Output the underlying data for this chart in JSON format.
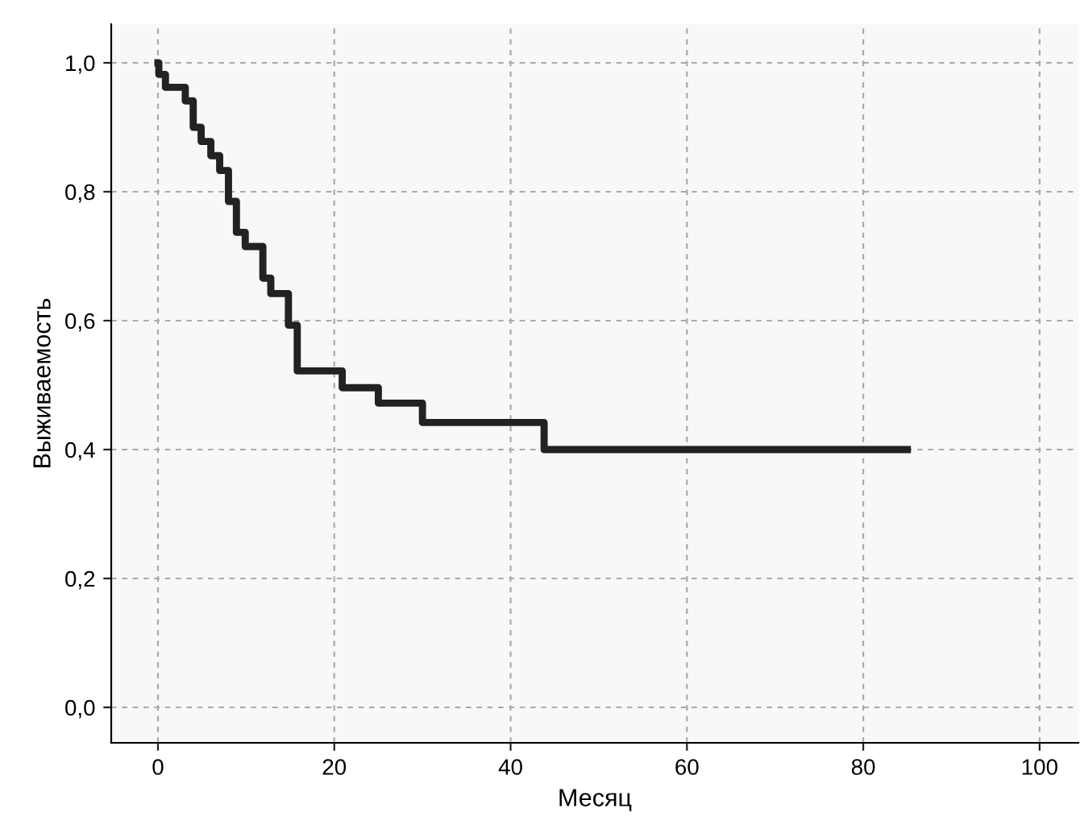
{
  "chart_data": {
    "type": "step",
    "xlabel": "Месяц",
    "ylabel": "Выживаемость",
    "x": [
      0,
      0.1,
      0.85,
      3.1,
      4,
      4.9,
      6,
      7,
      8,
      8.9,
      9.9,
      11.9,
      12.8,
      14.8,
      15.8,
      20.9,
      25,
      30,
      43.8,
      85
    ],
    "series": [
      {
        "color": "#222222",
        "values": [
          1.0,
          0.982,
          0.962,
          0.941,
          0.9,
          0.878,
          0.856,
          0.833,
          0.785,
          0.737,
          0.715,
          0.666,
          0.642,
          0.593,
          0.522,
          0.496,
          0.472,
          0.442,
          0.4,
          0.4
        ]
      }
    ],
    "xlim": [
      -5.3,
      104.4
    ],
    "ylim": [
      -0.055,
      1.06
    ],
    "xticks": [
      0,
      20,
      40,
      60,
      80,
      100
    ],
    "yticks": [
      {
        "value": 0,
        "label": "0,0"
      },
      {
        "value": 0.2,
        "label": "0,2"
      },
      {
        "value": 0.4,
        "label": "0,4"
      },
      {
        "value": 0.6,
        "label": "0,6"
      },
      {
        "value": 0.8,
        "label": "0,8"
      },
      {
        "value": 1.0,
        "label": "1,0"
      }
    ],
    "grid": true,
    "line_style": "solid",
    "marker": "none"
  }
}
